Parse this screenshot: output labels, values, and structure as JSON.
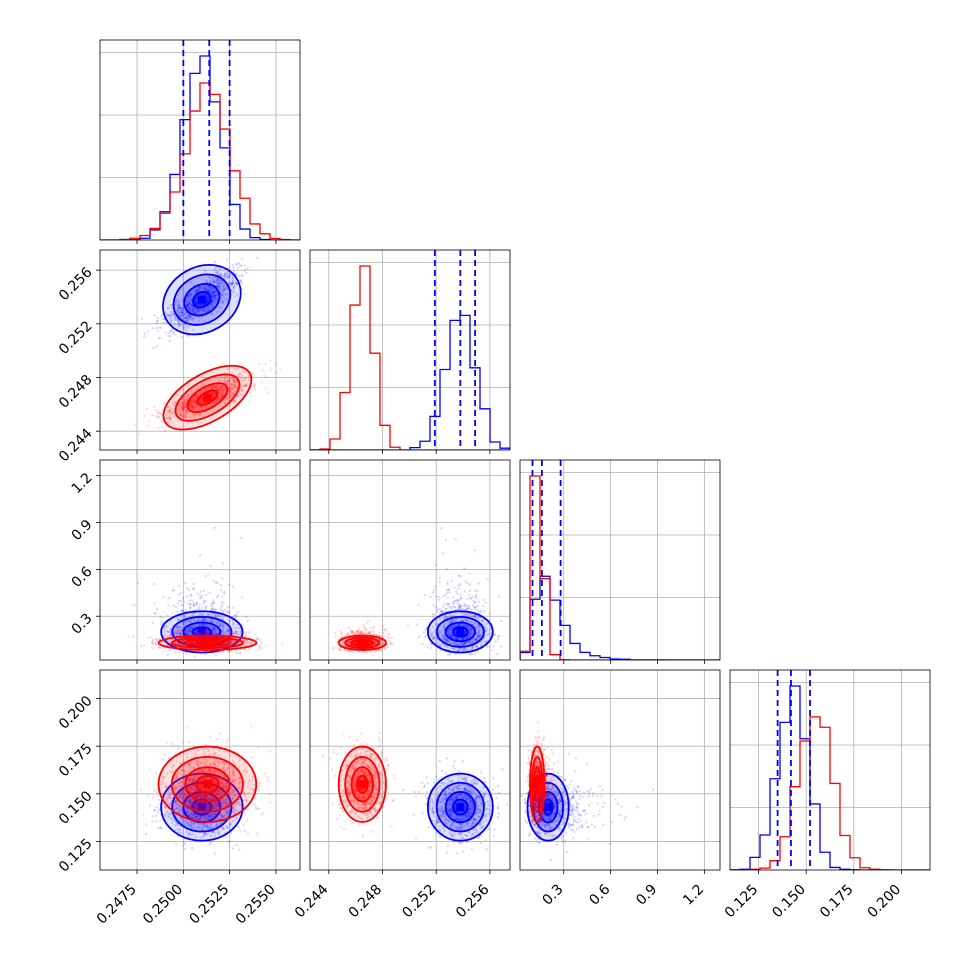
{
  "chart_data": {
    "type": "corner",
    "title": "",
    "parameters": [
      {
        "range": [
          0.2455,
          0.2563
        ],
        "ticks": [
          "0.2475",
          "0.2500",
          "0.2525",
          "0.2550"
        ],
        "tick_values": [
          0.2475,
          0.25,
          0.2525,
          0.255
        ]
      },
      {
        "range": [
          0.2426,
          0.2575
        ],
        "ticks": [
          "0.244",
          "0.248",
          "0.252",
          "0.256"
        ],
        "tick_values": [
          0.244,
          0.248,
          0.252,
          0.256
        ]
      },
      {
        "range": [
          0.02,
          1.3
        ],
        "ticks": [
          "0.3",
          "0.6",
          "0.9",
          "1.2"
        ],
        "tick_values": [
          0.3,
          0.6,
          0.9,
          1.2
        ]
      },
      {
        "range": [
          0.11,
          0.215
        ],
        "ticks": [
          "0.125",
          "0.150",
          "0.175",
          "0.200"
        ],
        "tick_values": [
          0.125,
          0.15,
          0.175,
          0.2
        ]
      }
    ],
    "series": [
      {
        "color": "#0000ff",
        "means": [
          0.251,
          0.2538,
          0.2,
          0.143
        ],
        "stds": [
          0.001,
          0.0011,
          0.1,
          0.008
        ],
        "quantile_lines": [
          [
            0.25,
            0.2514,
            0.2525
          ],
          [
            0.2519,
            0.2538,
            0.2549
          ],
          [
            0.1,
            0.16,
            0.28
          ],
          [
            0.135,
            0.142,
            0.152
          ]
        ]
      },
      {
        "color": "#ff0000",
        "means": [
          0.2513,
          0.2465,
          0.13,
          0.155
        ],
        "stds": [
          0.0012,
          0.0008,
          0.035,
          0.009
        ],
        "quantile_lines": []
      }
    ],
    "grid": true,
    "legend": "none"
  }
}
